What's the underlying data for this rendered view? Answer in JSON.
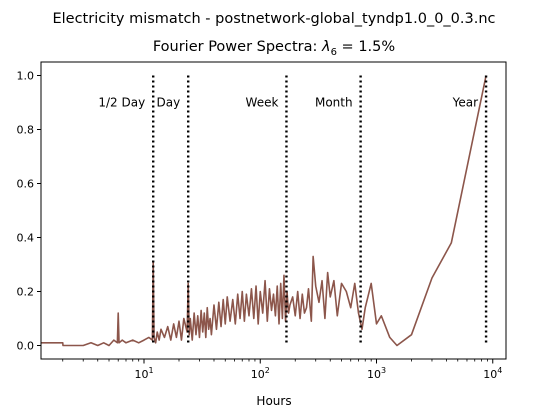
{
  "suptitle": "Electricity mismatch - postnetwork-global_tyndp1.0_0_0.3.nc",
  "chart_data": {
    "type": "line",
    "title_prefix": "Fourier Power Spectra: ",
    "title_lambda": "λ",
    "title_lambda_sub": "6",
    "title_suffix": " = 1.5%",
    "xlabel": "Hours",
    "ylabel": "",
    "xscale": "log",
    "xlim": [
      1.3,
      13000
    ],
    "ylim": [
      -0.05,
      1.05
    ],
    "xticks": [
      {
        "value": 10,
        "base": "10",
        "exp": "1"
      },
      {
        "value": 100,
        "base": "10",
        "exp": "2"
      },
      {
        "value": 1000,
        "base": "10",
        "exp": "3"
      },
      {
        "value": 10000,
        "base": "10",
        "exp": "4"
      }
    ],
    "yticks": [
      {
        "value": 0.0,
        "label": "0.0"
      },
      {
        "value": 0.2,
        "label": "0.2"
      },
      {
        "value": 0.4,
        "label": "0.4"
      },
      {
        "value": 0.6,
        "label": "0.6"
      },
      {
        "value": 0.8,
        "label": "0.8"
      },
      {
        "value": 1.0,
        "label": "1.0"
      }
    ],
    "series_color": "#8c564b",
    "series": [
      {
        "values_x": [
          1.3,
          2.0,
          2.01,
          3.0,
          3.5,
          4.0,
          4.5,
          5.0,
          5.5,
          5.9,
          6.0,
          6.1,
          6.5,
          7.0,
          8.0,
          9.0,
          10.0,
          11.0,
          11.8,
          12.0,
          12.2,
          12.6,
          13.0,
          13.5,
          14.0,
          15.0,
          16.0,
          17.0,
          18.0,
          19.0,
          20.0,
          21.0,
          22.0,
          23.5,
          24.0,
          24.5,
          25.0,
          26.0,
          27.0,
          28.0,
          29.0,
          30.0,
          31.0,
          32.0,
          33.0,
          34.0,
          35.0,
          36.0,
          37.0,
          38.0,
          40.0,
          42.0,
          44.0,
          46.0,
          48.0,
          50.0,
          52.0,
          55.0,
          58.0,
          61.0,
          64.0,
          67.0,
          70.0,
          73.0,
          76.0,
          80.0,
          84.0,
          88.0,
          92.0,
          96.0,
          100.0,
          105.0,
          110.0,
          115.0,
          120.0,
          125.0,
          130.0,
          135.0,
          140.0,
          145.0,
          150.0,
          155.0,
          160.0,
          165.0,
          170.0,
          175.0,
          180.0,
          190.0,
          200.0,
          210.0,
          220.0,
          230.0,
          240.0,
          250.0,
          260.0,
          275.0,
          285.0,
          300.0,
          320.0,
          340.0,
          360.0,
          380.0,
          400.0,
          430.0,
          460.0,
          500.0,
          550.0,
          600.0,
          650.0,
          700.0,
          750.0,
          800.0,
          900.0,
          1000.0,
          1100.0,
          1300.0,
          1500.0,
          2000.0,
          3000.0,
          4400.0,
          8760.0
        ],
        "values_y": [
          0.01,
          0.01,
          0.0,
          0.0,
          0.01,
          0.0,
          0.01,
          0.0,
          0.02,
          0.01,
          0.12,
          0.01,
          0.02,
          0.01,
          0.02,
          0.01,
          0.02,
          0.03,
          0.02,
          0.31,
          0.03,
          0.01,
          0.05,
          0.02,
          0.06,
          0.03,
          0.07,
          0.02,
          0.08,
          0.03,
          0.09,
          0.02,
          0.1,
          0.05,
          0.23,
          0.04,
          0.1,
          0.02,
          0.12,
          0.04,
          0.11,
          0.03,
          0.13,
          0.05,
          0.12,
          0.03,
          0.14,
          0.06,
          0.1,
          0.04,
          0.15,
          0.06,
          0.16,
          0.07,
          0.17,
          0.08,
          0.18,
          0.09,
          0.17,
          0.08,
          0.19,
          0.1,
          0.2,
          0.09,
          0.19,
          0.11,
          0.21,
          0.1,
          0.22,
          0.08,
          0.2,
          0.12,
          0.24,
          0.09,
          0.21,
          0.13,
          0.19,
          0.11,
          0.22,
          0.08,
          0.23,
          0.1,
          0.26,
          0.09,
          0.2,
          0.12,
          0.15,
          0.18,
          0.11,
          0.2,
          0.1,
          0.19,
          0.12,
          0.14,
          0.21,
          0.09,
          0.33,
          0.22,
          0.16,
          0.24,
          0.1,
          0.27,
          0.18,
          0.24,
          0.11,
          0.23,
          0.2,
          0.14,
          0.23,
          0.12,
          0.06,
          0.14,
          0.23,
          0.08,
          0.11,
          0.03,
          0.0,
          0.04,
          0.25,
          0.38,
          1.0
        ]
      }
    ],
    "vlines": [
      {
        "x": 12,
        "label": "1/2 Day",
        "label_side": "left"
      },
      {
        "x": 24,
        "label": "Day",
        "label_side": "left"
      },
      {
        "x": 168,
        "label": "Week",
        "label_side": "left"
      },
      {
        "x": 730,
        "label": "Month",
        "label_side": "left"
      },
      {
        "x": 8760,
        "label": "Year",
        "label_side": "left"
      }
    ],
    "vline_label_y": 0.9,
    "grid": false,
    "legend": "none"
  }
}
